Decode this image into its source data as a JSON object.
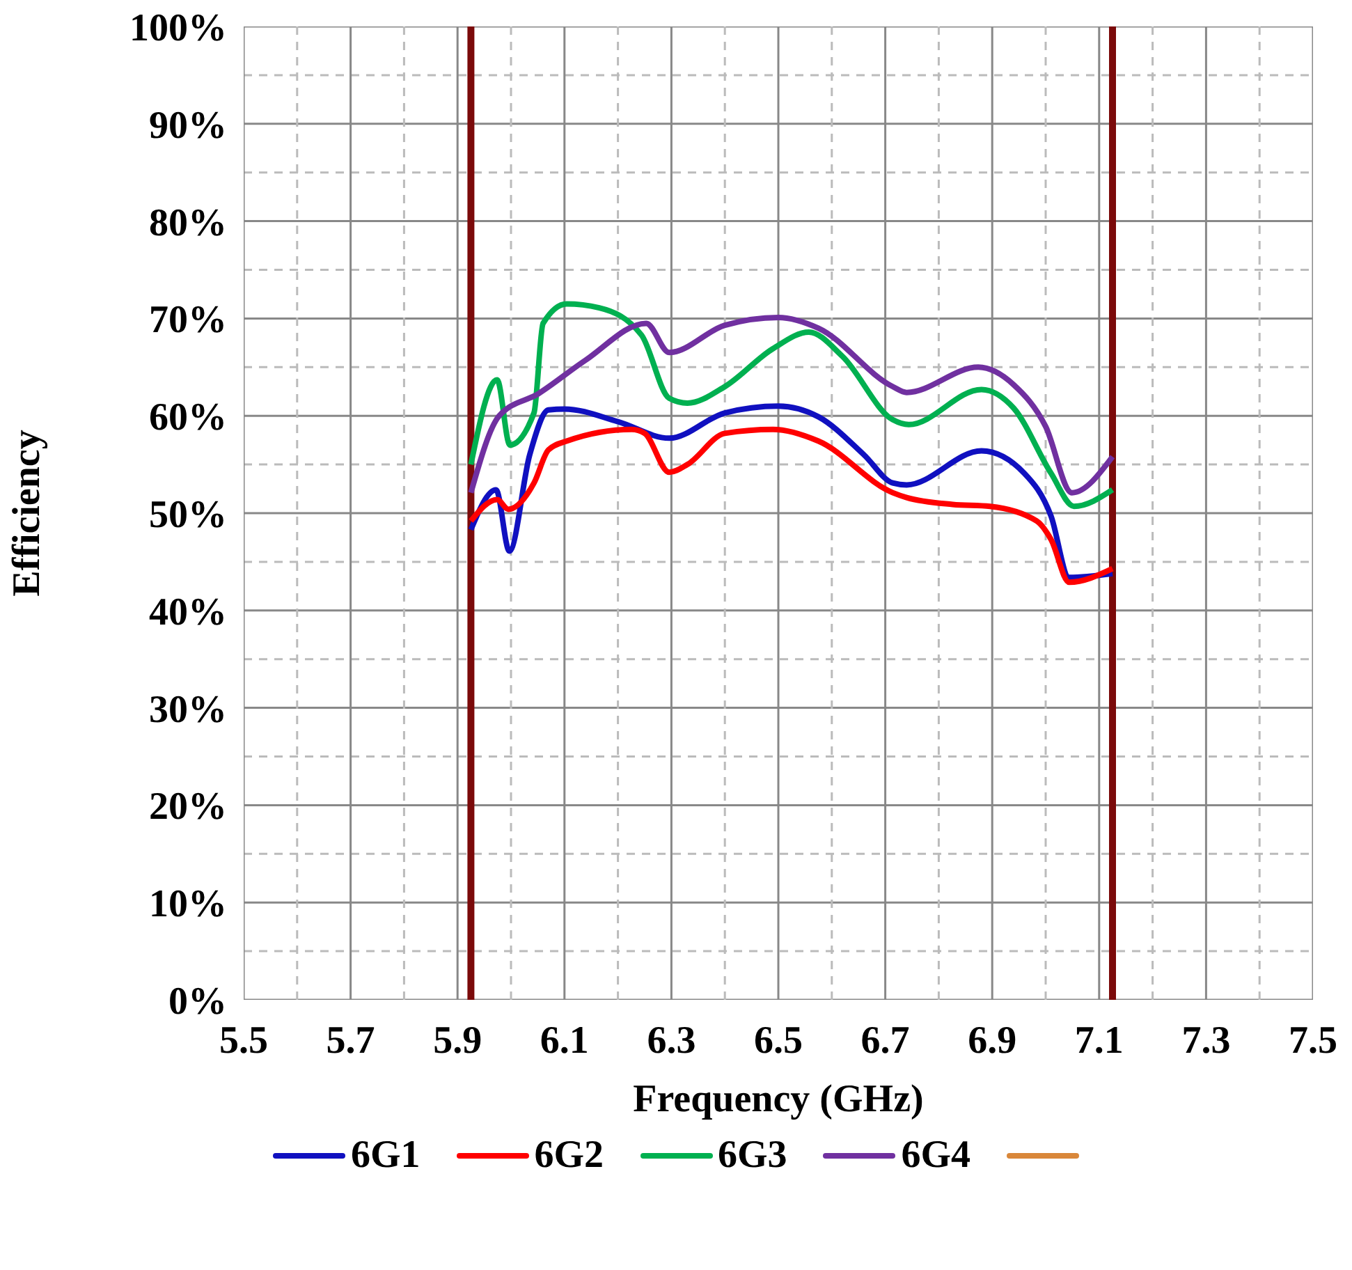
{
  "chart_data": {
    "type": "line",
    "xlabel": "Frequency (GHz)",
    "ylabel": "Efficiency",
    "xlim": [
      5.5,
      7.5
    ],
    "xticks": [
      5.5,
      {
        "value": 5.6,
        "label": null
      },
      5.7,
      {
        "value": 5.8,
        "label": null
      },
      5.9,
      {
        "value": 6.0,
        "label": null
      },
      6.1,
      {
        "value": 6.2,
        "label": null
      },
      6.3,
      {
        "value": 6.4,
        "label": null
      },
      6.5,
      {
        "value": 6.6,
        "label": null
      },
      6.7,
      {
        "value": 6.8,
        "label": null
      },
      6.9,
      {
        "value": 7.0,
        "label": null
      },
      7.1,
      {
        "value": 7.2,
        "label": null
      },
      7.3,
      {
        "value": 7.4,
        "label": null
      },
      7.5
    ],
    "ylim": [
      0,
      100
    ],
    "yticks": [
      {
        "value": 0,
        "label": "0%"
      },
      {
        "value": 5,
        "label": null
      },
      {
        "value": 10,
        "label": "10%"
      },
      {
        "value": 15,
        "label": null
      },
      {
        "value": 20,
        "label": "20%"
      },
      {
        "value": 25,
        "label": null
      },
      {
        "value": 30,
        "label": "30%"
      },
      {
        "value": 35,
        "label": null
      },
      {
        "value": 40,
        "label": "40%"
      },
      {
        "value": 45,
        "label": null
      },
      {
        "value": 50,
        "label": "50%"
      },
      {
        "value": 55,
        "label": null
      },
      {
        "value": 60,
        "label": "60%"
      },
      {
        "value": 65,
        "label": null
      },
      {
        "value": 70,
        "label": "70%"
      },
      {
        "value": 75,
        "label": null
      },
      {
        "value": 80,
        "label": "80%"
      },
      {
        "value": 85,
        "label": null
      },
      {
        "value": 90,
        "label": "90%"
      },
      {
        "value": 95,
        "label": null
      },
      {
        "value": 100,
        "label": "100%"
      }
    ],
    "grid": true,
    "legend": "bottom",
    "marker": "none",
    "line_style": "solid",
    "ref_lines": [
      {
        "axis": "x",
        "value": 5.925,
        "color": "#7b0a0a"
      },
      {
        "axis": "x",
        "value": 7.125,
        "color": "#7b0a0a"
      }
    ],
    "series": [
      {
        "name": "6G1",
        "color": "#1010c0",
        "x": [
          5.925,
          5.972,
          5.997,
          6.035,
          6.07,
          6.1,
          6.2,
          6.296,
          6.4,
          6.5,
          6.575,
          6.66,
          6.714,
          6.74,
          6.88,
          6.96,
          7.01,
          7.044,
          7.125
        ],
        "values": [
          48.3,
          52.4,
          46.1,
          56,
          60.6,
          60.7,
          59.4,
          57.7,
          60.3,
          61,
          59.9,
          56,
          53.1,
          52.9,
          56.4,
          54.1,
          49.7,
          43.4,
          43.8
        ]
      },
      {
        "name": "6G2",
        "color": "#ff0000",
        "x": [
          5.925,
          5.974,
          5.995,
          6.043,
          6.07,
          6.104,
          6.226,
          6.25,
          6.296,
          6.33,
          6.4,
          6.49,
          6.575,
          6.714,
          6.74,
          6.826,
          6.896,
          6.983,
          7.01,
          7.044,
          7.125
        ],
        "values": [
          49.2,
          51.4,
          50.4,
          53.1,
          56.5,
          57.4,
          58.6,
          58.2,
          54.2,
          55,
          58.2,
          58.6,
          57.4,
          52.1,
          51.6,
          50.9,
          50.7,
          49.2,
          47.3,
          42.9,
          44.3
        ]
      },
      {
        "name": "6G3",
        "color": "#00b050",
        "x": [
          5.925,
          5.974,
          5.998,
          6.043,
          6.06,
          6.104,
          6.165,
          6.244,
          6.296,
          6.33,
          6.4,
          6.49,
          6.557,
          6.62,
          6.714,
          6.744,
          6.88,
          6.94,
          7.01,
          7.053,
          7.125
        ],
        "values": [
          55,
          63.7,
          57,
          60.3,
          69.5,
          71.5,
          71.1,
          68.3,
          61.8,
          61.3,
          63,
          66.9,
          68.6,
          66.1,
          59.6,
          59.1,
          62.7,
          60.8,
          54.1,
          50.7,
          52.4
        ]
      },
      {
        "name": "6G4",
        "color": "#7030a0",
        "x": [
          5.925,
          5.978,
          6.052,
          6.139,
          6.253,
          6.296,
          6.4,
          6.5,
          6.575,
          6.714,
          6.74,
          6.874,
          6.94,
          7.0,
          7.049,
          7.125
        ],
        "values": [
          52.1,
          60,
          62.3,
          65.7,
          69.5,
          66.5,
          69.3,
          70.1,
          69,
          63,
          62.4,
          65,
          63.2,
          58.9,
          52.1,
          55.8
        ]
      },
      {
        "color": "#d9873a"
      }
    ]
  }
}
